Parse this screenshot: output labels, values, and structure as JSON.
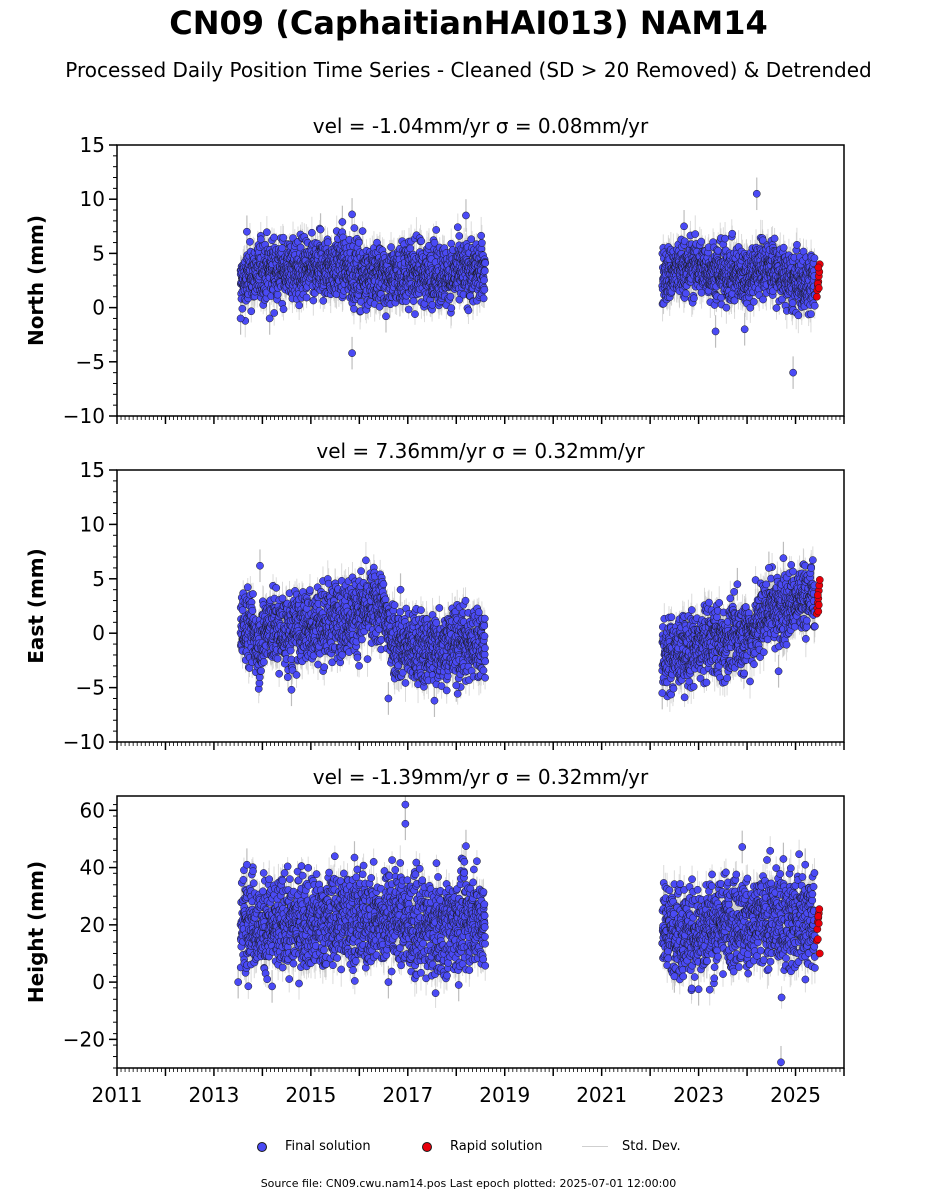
{
  "title": "CN09 (CaphaitianHAI013) NAM14",
  "subtitle": "Processed Daily Position Time Series - Cleaned (SD > 20 Removed) & Detrended",
  "legend": {
    "final": "Final solution",
    "rapid": "Rapid solution",
    "std": "Std. Dev."
  },
  "footer": "Source file: CN09.cwu.nam14.pos  Last epoch plotted: 2025-07-01 12:00:00",
  "colors": {
    "final": "#4a4af5",
    "rapid": "#e8000b",
    "errorbar": "#bdbdbd",
    "edge": "#1a1a1a"
  },
  "chart_data": [
    {
      "type": "scatter",
      "title": "vel = -1.04mm/yr   σ = 0.08mm/yr",
      "ylabel": "North (mm)",
      "xlim": [
        2011,
        2026
      ],
      "ylim": [
        -10,
        15
      ],
      "yticks": [
        -10,
        -5,
        0,
        5,
        10,
        15
      ],
      "xticks": [
        2011,
        2013,
        2015,
        2017,
        2019,
        2021,
        2023,
        2025
      ],
      "grid": false,
      "series": [
        {
          "name": "Final solution",
          "segments": [
            {
              "x": [
                2013.55,
                2013.65,
                2013.78,
                2013.95,
                2014.1,
                2014.3,
                2014.5,
                2014.7,
                2014.9,
                2015.1,
                2015.3,
                2015.5,
                2015.7,
                2015.9,
                2016.1,
                2016.3,
                2016.5,
                2016.7,
                2016.9,
                2017.1,
                2017.3,
                2017.5,
                2017.7,
                2017.9,
                2018.1,
                2018.3,
                2018.6
              ],
              "y": [
                2.0,
                2.5,
                3.0,
                3.3,
                3.5,
                3.6,
                3.5,
                3.4,
                3.5,
                3.4,
                3.6,
                3.8,
                3.7,
                3.2,
                3.1,
                3.0,
                2.8,
                3.0,
                3.1,
                3.3,
                3.2,
                3.1,
                3.0,
                3.0,
                3.2,
                3.3,
                3.4
              ],
              "spread": 1.4
            },
            {
              "x": [
                2022.25,
                2022.35,
                2022.45,
                2022.55,
                2022.95,
                2023.1,
                2023.3,
                2023.5,
                2023.7,
                2023.9,
                2024.1,
                2024.3,
                2024.5,
                2024.7,
                2024.9,
                2025.1,
                2025.4
              ],
              "y": [
                2.8,
                3.0,
                3.2,
                3.4,
                3.8,
                3.6,
                3.4,
                3.2,
                3.1,
                2.9,
                3.2,
                3.8,
                3.8,
                3.0,
                2.4,
                2.2,
                2.3
              ],
              "spread": 1.3
            }
          ],
          "outliers": [
            {
              "x": 2015.85,
              "y": -4.2
            },
            {
              "x": 2015.85,
              "y": 8.6
            },
            {
              "x": 2015.65,
              "y": 7.9
            },
            {
              "x": 2018.2,
              "y": 8.5
            },
            {
              "x": 2013.68,
              "y": 7.0
            },
            {
              "x": 2024.2,
              "y": 10.5
            },
            {
              "x": 2024.95,
              "y": -6.0
            },
            {
              "x": 2023.35,
              "y": -2.2
            },
            {
              "x": 2023.95,
              "y": -2.0
            },
            {
              "x": 2022.7,
              "y": 7.5
            },
            {
              "x": 2014.15,
              "y": -1.0
            },
            {
              "x": 2016.55,
              "y": -0.8
            },
            {
              "x": 2013.55,
              "y": -1.0
            },
            {
              "x": 2015.2,
              "y": 7.2
            }
          ]
        },
        {
          "name": "Rapid solution",
          "x": [
            2025.44,
            2025.45,
            2025.46,
            2025.47,
            2025.48,
            2025.49,
            2025.5,
            2025.47,
            2025.46,
            2025.48
          ],
          "y": [
            1.0,
            1.6,
            2.0,
            2.4,
            2.9,
            3.3,
            4.0,
            3.7,
            2.2,
            1.8
          ]
        }
      ]
    },
    {
      "type": "scatter",
      "title": "vel = 7.36mm/yr   σ = 0.32mm/yr",
      "ylabel": "East (mm)",
      "xlim": [
        2011,
        2026
      ],
      "ylim": [
        -10,
        15
      ],
      "yticks": [
        -10,
        -5,
        0,
        5,
        10,
        15
      ],
      "xticks": [
        2011,
        2013,
        2015,
        2017,
        2019,
        2021,
        2023,
        2025
      ],
      "grid": false,
      "series": [
        {
          "name": "Final solution",
          "segments": [
            {
              "x": [
                2013.55,
                2013.65,
                2013.78,
                2013.95,
                2014.1,
                2014.3,
                2014.5,
                2014.7,
                2014.9,
                2015.1,
                2015.3,
                2015.5,
                2015.7,
                2015.9,
                2016.1,
                2016.3,
                2016.5,
                2016.6,
                2016.8,
                2017.0,
                2017.3,
                2017.6,
                2017.9,
                2018.2,
                2018.6
              ],
              "y": [
                0.5,
                0.8,
                0.2,
                -1.0,
                0.5,
                0.3,
                0.0,
                0.4,
                0.6,
                0.8,
                1.0,
                1.2,
                1.5,
                1.8,
                2.0,
                2.3,
                2.2,
                0.5,
                -1.0,
                -1.2,
                -1.5,
                -1.2,
                -1.0,
                -1.0,
                -0.8
              ],
              "spread": 1.7
            },
            {
              "x": [
                2022.25,
                2022.35,
                2022.45,
                2022.55,
                2022.95,
                2023.1,
                2023.3,
                2023.5,
                2023.7,
                2023.9,
                2024.1,
                2024.3,
                2024.5,
                2024.7,
                2024.9,
                2025.1,
                2025.4
              ],
              "y": [
                -2.0,
                -2.2,
                -2.0,
                -1.8,
                -1.5,
                -1.0,
                -0.5,
                -1.0,
                -0.5,
                -0.2,
                0.0,
                1.5,
                2.5,
                2.0,
                2.8,
                3.2,
                3.5
              ],
              "spread": 1.6
            }
          ],
          "outliers": [
            {
              "x": 2013.95,
              "y": 6.2
            },
            {
              "x": 2016.6,
              "y": -6.0
            },
            {
              "x": 2017.55,
              "y": -6.2
            },
            {
              "x": 2022.25,
              "y": -5.5
            },
            {
              "x": 2024.75,
              "y": 6.9
            },
            {
              "x": 2024.45,
              "y": 6.0
            },
            {
              "x": 2014.6,
              "y": -5.2
            },
            {
              "x": 2023.8,
              "y": 4.5
            },
            {
              "x": 2024.65,
              "y": -3.5
            },
            {
              "x": 2018.0,
              "y": -4.8
            },
            {
              "x": 2016.85,
              "y": 4.0
            }
          ]
        },
        {
          "name": "Rapid solution",
          "x": [
            2025.44,
            2025.45,
            2025.46,
            2025.47,
            2025.48,
            2025.49,
            2025.5,
            2025.47,
            2025.46,
            2025.48
          ],
          "y": [
            1.8,
            2.3,
            2.8,
            3.2,
            3.9,
            4.4,
            4.9,
            2.0,
            3.5,
            2.6
          ]
        }
      ]
    },
    {
      "type": "scatter",
      "title": "vel = -1.39mm/yr   σ = 0.32mm/yr",
      "ylabel": "Height (mm)",
      "xlim": [
        2011,
        2026
      ],
      "ylim": [
        -30,
        65
      ],
      "yticks": [
        -20,
        0,
        20,
        40,
        60
      ],
      "xticks": [
        2011,
        2013,
        2015,
        2017,
        2019,
        2021,
        2023,
        2025
      ],
      "xticklabels": [
        "2011",
        "2013",
        "2015",
        "2017",
        "2019",
        "2021",
        "2023",
        "2025"
      ],
      "grid": false,
      "series": [
        {
          "name": "Final solution",
          "segments": [
            {
              "x": [
                2013.55,
                2013.65,
                2013.78,
                2013.95,
                2014.1,
                2014.3,
                2014.5,
                2014.7,
                2014.9,
                2015.1,
                2015.3,
                2015.5,
                2015.7,
                2015.9,
                2016.1,
                2016.3,
                2016.5,
                2016.7,
                2016.9,
                2017.1,
                2017.3,
                2017.5,
                2017.7,
                2017.9,
                2018.1,
                2018.3,
                2018.6
              ],
              "y": [
                20,
                22,
                24,
                18,
                20,
                19,
                20,
                21,
                22,
                20,
                21,
                22,
                23,
                22,
                21,
                22,
                21,
                24,
                22,
                20,
                19,
                18,
                19,
                20,
                21,
                22,
                22
              ],
              "spread": 8
            },
            {
              "x": [
                2022.25,
                2022.35,
                2022.45,
                2022.55,
                2022.95,
                2023.1,
                2023.3,
                2023.5,
                2023.7,
                2023.9,
                2024.1,
                2024.3,
                2024.5,
                2024.7,
                2024.9,
                2025.1,
                2025.4
              ],
              "y": [
                20,
                19,
                18,
                17,
                18,
                19,
                20,
                21,
                22,
                21,
                20,
                21,
                22,
                20,
                21,
                22,
                22
              ],
              "spread": 8
            }
          ],
          "outliers": [
            {
              "x": 2016.95,
              "y": 62.0
            },
            {
              "x": 2016.95,
              "y": 55.3
            },
            {
              "x": 2018.2,
              "y": 47.5
            },
            {
              "x": 2024.7,
              "y": -28.0
            },
            {
              "x": 2013.5,
              "y": 0.0
            },
            {
              "x": 2013.68,
              "y": 41.0
            },
            {
              "x": 2015.9,
              "y": 43.5
            },
            {
              "x": 2023.9,
              "y": 47.2
            },
            {
              "x": 2024.75,
              "y": 43.0
            },
            {
              "x": 2025.2,
              "y": 41.0
            },
            {
              "x": 2014.2,
              "y": -1.5
            },
            {
              "x": 2016.6,
              "y": 0.0
            },
            {
              "x": 2018.05,
              "y": -1.0
            },
            {
              "x": 2023.0,
              "y": -2.5
            },
            {
              "x": 2022.5,
              "y": 2.0
            }
          ]
        },
        {
          "name": "Rapid solution",
          "x": [
            2025.44,
            2025.45,
            2025.46,
            2025.47,
            2025.48,
            2025.49,
            2025.5,
            2025.47,
            2025.46,
            2025.48
          ],
          "y": [
            14.5,
            18.5,
            21.0,
            22.5,
            24.0,
            25.5,
            10.0,
            23.0,
            15.0,
            20.5
          ]
        }
      ]
    }
  ]
}
